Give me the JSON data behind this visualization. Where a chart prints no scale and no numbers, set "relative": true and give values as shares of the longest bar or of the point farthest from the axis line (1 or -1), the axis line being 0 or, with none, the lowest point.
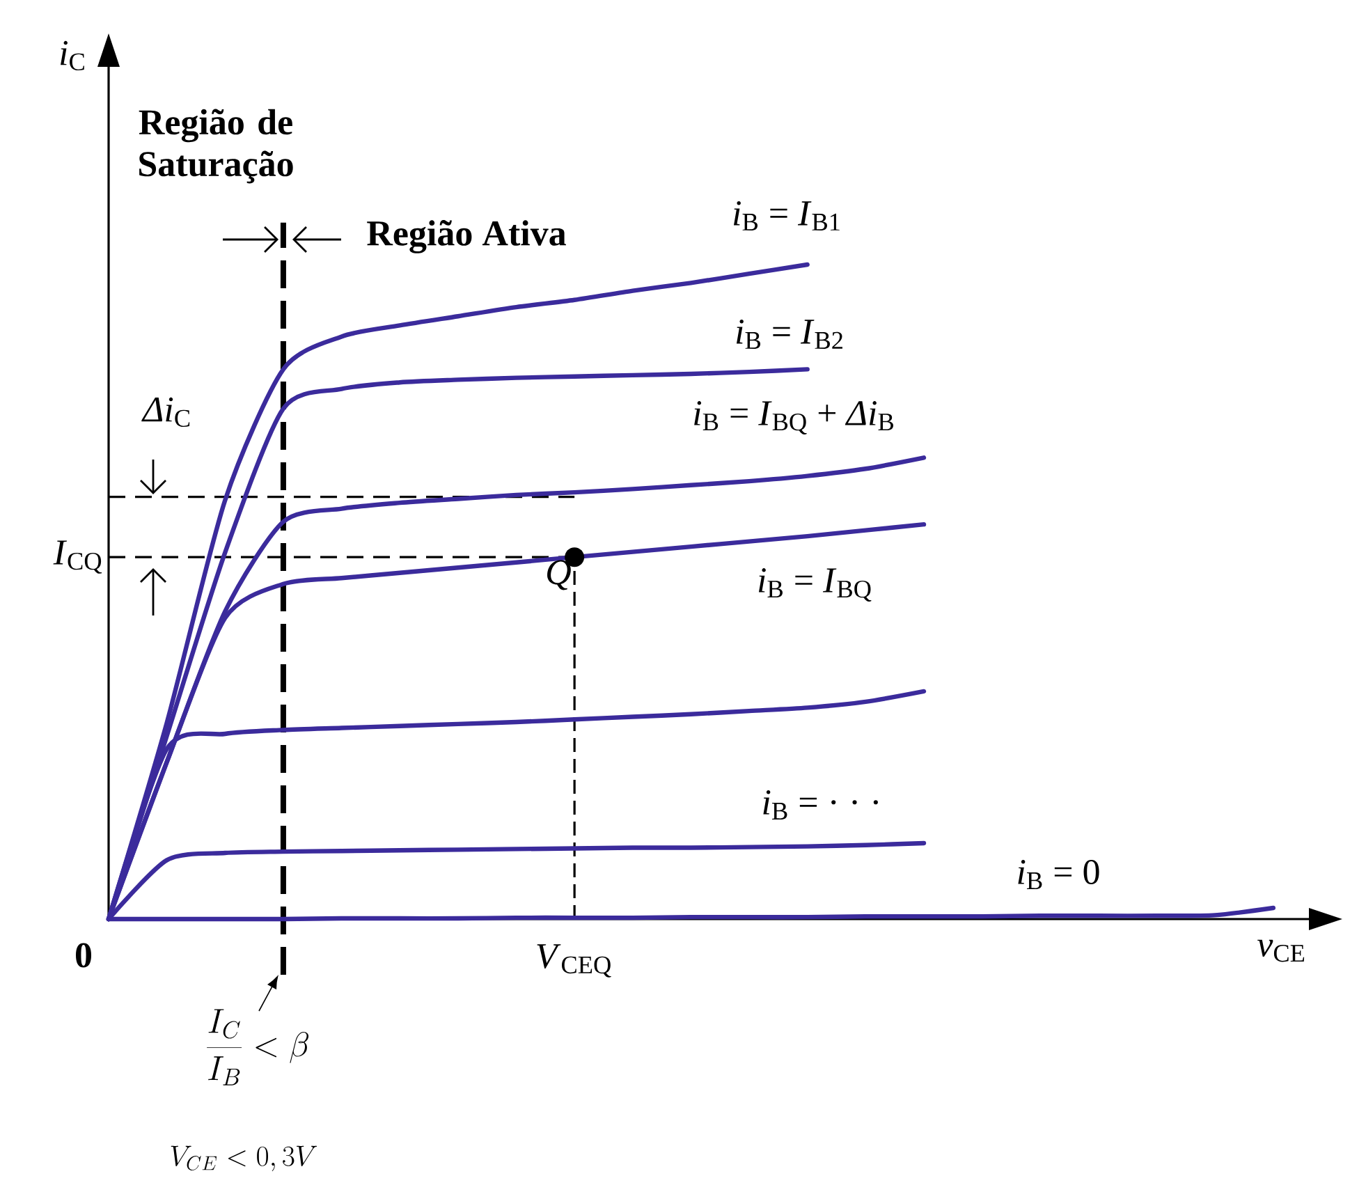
{
  "chart_data": {
    "type": "line",
    "relative": true,
    "xlabel": "*v*$_{CE}$",
    "categories": [
      null,
      null,
      null,
      null,
      null,
      null,
      null,
      null,
      null,
      null,
      null,
      null,
      null,
      null,
      null,
      null,
      null,
      null,
      null,
      null,
      null
    ],
    "series": [
      {
        "name": "*i*$_{B}$ = *I*$_{B1}$",
        "color": "#3b2b9c",
        "values": [
          0,
          0.3,
          0.64,
          0.84,
          0.89,
          0.907,
          0.921,
          0.935,
          0.946,
          0.96,
          0.972,
          0.986,
          1.0,
          null,
          null,
          null,
          null,
          null,
          null,
          null,
          null
        ]
      },
      {
        "name": "*i*$_{B}$ = *I*$_{B2}$",
        "color": "#3b2b9c",
        "values": [
          0,
          0.28,
          0.56,
          0.78,
          0.81,
          0.82,
          0.824,
          0.827,
          0.829,
          0.831,
          0.833,
          0.836,
          0.84,
          null,
          null,
          null,
          null,
          null,
          null,
          null,
          null
        ]
      },
      {
        "name": "*i*$_{B}$ = *I*$_{BQ}$ + *Δi*$_{B}$",
        "color": "#3b2b9c",
        "values": [
          0,
          0.24,
          0.47,
          0.607,
          0.627,
          0.636,
          0.642,
          0.648,
          0.652,
          0.657,
          0.663,
          0.669,
          0.677,
          0.688,
          0.705,
          null,
          null,
          null,
          null,
          null,
          null
        ]
      },
      {
        "name": "*i*$_{B}$ = *I*$_{BQ}$",
        "color": "#3b2b9c",
        "values": [
          0,
          0.24,
          0.46,
          0.512,
          0.521,
          0.529,
          0.537,
          0.545,
          0.553,
          0.561,
          0.569,
          0.577,
          0.585,
          0.594,
          0.603,
          null,
          null,
          null,
          null,
          null,
          null
        ]
      },
      {
        "color": "#3b2b9c",
        "values": [
          0,
          0.26,
          0.283,
          0.289,
          0.292,
          0.295,
          0.298,
          0.301,
          0.305,
          0.309,
          0.313,
          0.318,
          0.323,
          0.332,
          0.348,
          null,
          null,
          null,
          null,
          null,
          null
        ]
      },
      {
        "name": "*i*$_{B}$ = · · ·",
        "color": "#3b2b9c",
        "values": [
          0,
          0.09,
          0.101,
          0.103,
          0.104,
          0.105,
          0.106,
          0.107,
          0.108,
          0.109,
          0.109,
          0.11,
          0.111,
          0.113,
          0.116,
          null,
          null,
          null,
          null,
          null,
          null
        ]
      },
      {
        "name": "*i*$_{B}$ = 0",
        "color": "#3b2b9c",
        "values": [
          0,
          0,
          0,
          0,
          0.001,
          0.001,
          0.001,
          0.002,
          0.002,
          0.002,
          0.003,
          0.003,
          0.003,
          0.004,
          0.004,
          0.004,
          0.005,
          0.005,
          0.005,
          0.006,
          0.017
        ]
      }
    ],
    "ref_lines": [
      {
        "axis": "y",
        "value": 0.553,
        "label": "*I*$_{CQ}$",
        "line_style": "dashed",
        "color": "#000000"
      },
      {
        "axis": "y",
        "value": 0.645,
        "line_style": "dashed",
        "color": "#000000"
      }
    ],
    "annotations": [
      {
        "text": "Q",
        "y": 0.553
      },
      "Região de Saturação",
      "Região Ativa",
      "*Δi*$_{C}$",
      "0",
      "\\frac{I_C}{I_B} < \\beta",
      "V_{CE} < 0,3V",
      "*V*$_{CEQ}$",
      "*i*$_{C}$"
    ]
  }
}
